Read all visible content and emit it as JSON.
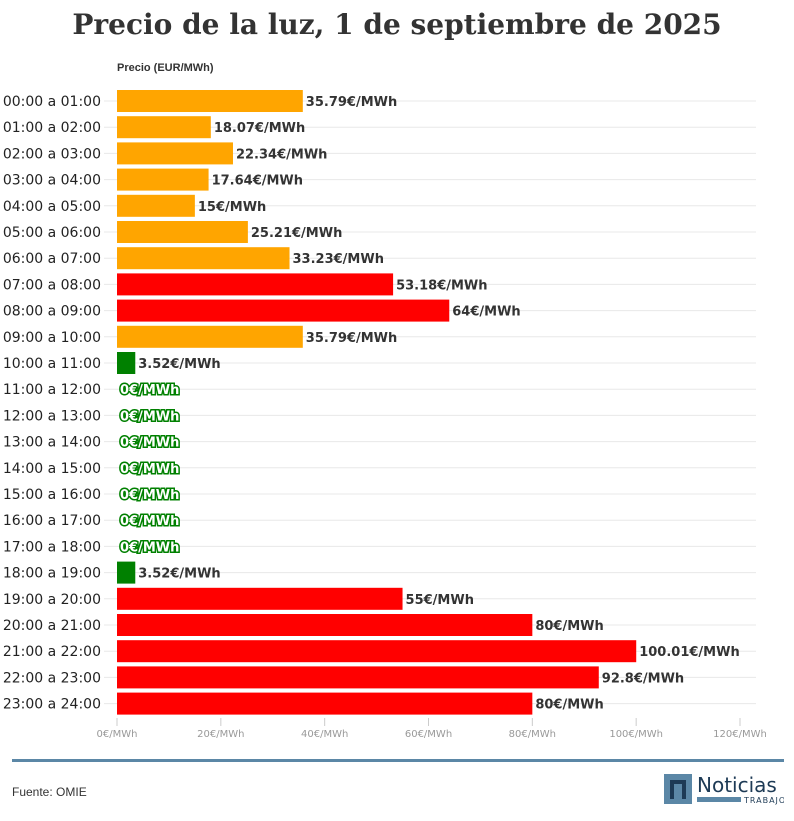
{
  "chart_data": {
    "type": "bar",
    "orientation": "horizontal",
    "title": "Precio de la luz, 1 de septiembre de 2025",
    "ylabel": "Precio (EUR/MWh)",
    "xlim": [
      0,
      120
    ],
    "x_ticks": [
      "0€/MWh",
      "20€/MWh",
      "40€/MWh",
      "60€/MWh",
      "80€/MWh",
      "100€/MWh",
      "120€/MWh"
    ],
    "grid": true,
    "categories": [
      "00:00 a 01:00",
      "01:00 a 02:00",
      "02:00 a 03:00",
      "03:00 a 04:00",
      "04:00 a 05:00",
      "05:00 a 06:00",
      "06:00 a 07:00",
      "07:00 a 08:00",
      "08:00 a 09:00",
      "09:00 a 10:00",
      "10:00 a 11:00",
      "11:00 a 12:00",
      "12:00 a 13:00",
      "13:00 a 14:00",
      "14:00 a 15:00",
      "15:00 a 16:00",
      "16:00 a 17:00",
      "17:00 a 18:00",
      "18:00 a 19:00",
      "19:00 a 20:00",
      "20:00 a 21:00",
      "21:00 a 22:00",
      "22:00 a 23:00",
      "23:00 a 24:00"
    ],
    "values": [
      35.79,
      18.07,
      22.34,
      17.64,
      15,
      25.21,
      33.23,
      53.18,
      64,
      35.79,
      3.52,
      0,
      0,
      0,
      0,
      0,
      0,
      0,
      3.52,
      55,
      80,
      100.01,
      92.8,
      80
    ],
    "labels": [
      "35.79€/MWh",
      "18.07€/MWh",
      "22.34€/MWh",
      "17.64€/MWh",
      "15€/MWh",
      "25.21€/MWh",
      "33.23€/MWh",
      "53.18€/MWh",
      "64€/MWh",
      "35.79€/MWh",
      "3.52€/MWh",
      "0€/MWh",
      "0€/MWh",
      "0€/MWh",
      "0€/MWh",
      "0€/MWh",
      "0€/MWh",
      "0€/MWh",
      "3.52€/MWh",
      "55€/MWh",
      "80€/MWh",
      "100.01€/MWh",
      "92.8€/MWh",
      "80€/MWh"
    ],
    "bar_colors": [
      "#FFA500",
      "#FFA500",
      "#FFA500",
      "#FFA500",
      "#FFA500",
      "#FFA500",
      "#FFA500",
      "#FF0000",
      "#FF0000",
      "#FFA500",
      "#008000",
      "#008000",
      "#008000",
      "#008000",
      "#008000",
      "#008000",
      "#008000",
      "#008000",
      "#008000",
      "#FF0000",
      "#FF0000",
      "#FF0000",
      "#FF0000",
      "#FF0000"
    ]
  },
  "footer": {
    "source": "Fuente: OMIE",
    "logo_text": "Noticias",
    "logo_sub": "TRABAJO"
  },
  "colors": {
    "rule": "#5b87a6",
    "logo": "#5b87a6"
  }
}
